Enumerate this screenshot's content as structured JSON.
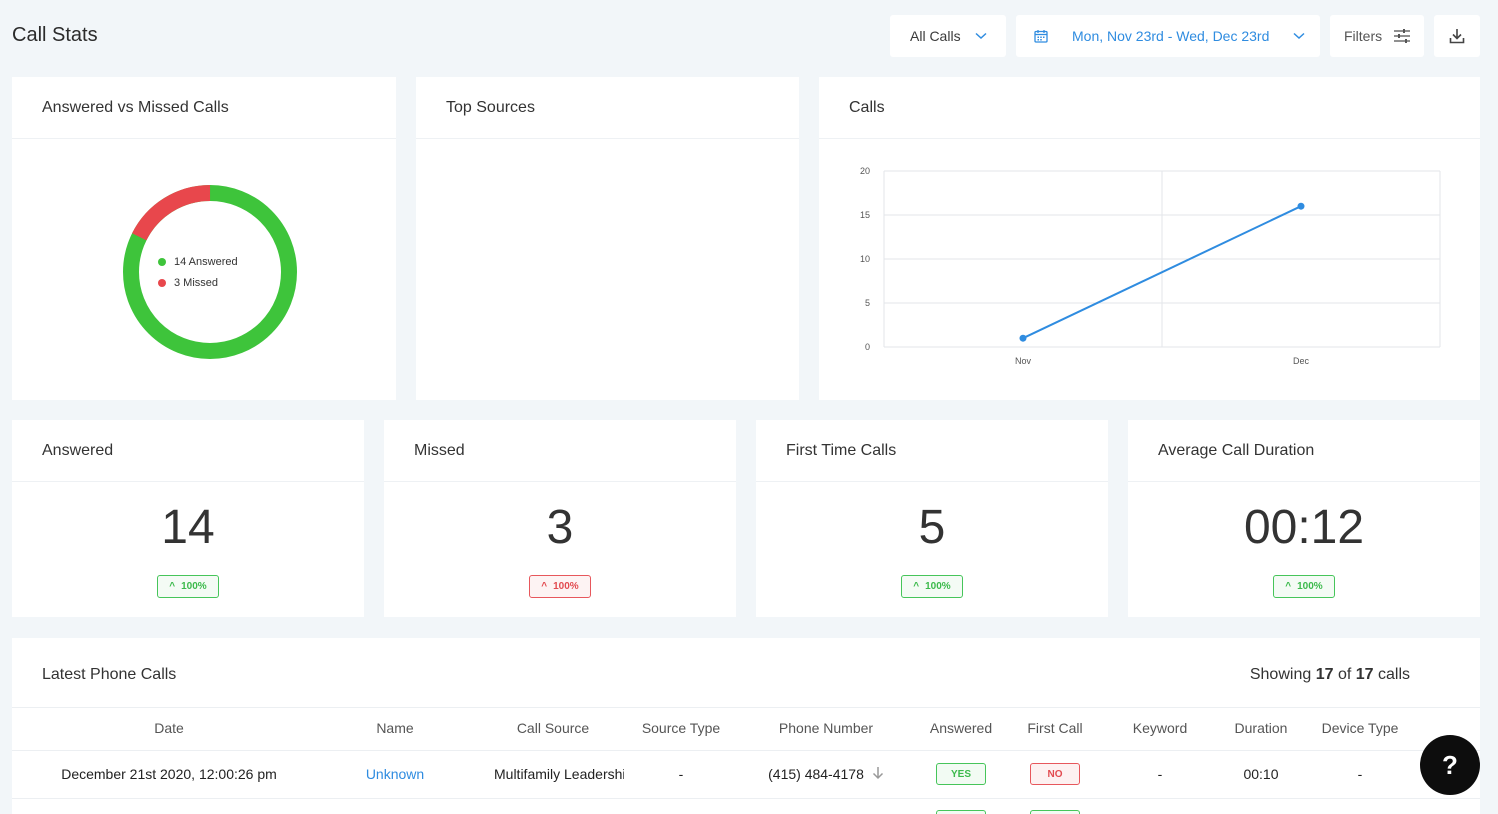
{
  "page": {
    "title": "Call Stats"
  },
  "header": {
    "call_filter": "All Calls",
    "date_range": "Mon, Nov 23rd - Wed, Dec 23rd",
    "filters_label": "Filters"
  },
  "answered_vs_missed": {
    "title": "Answered vs Missed Calls",
    "answered_label": "14 Answered",
    "missed_label": "3 Missed",
    "answered": 14,
    "missed": 3,
    "answered_color": "#3ec43b",
    "missed_color": "#e8474c"
  },
  "top_sources": {
    "title": "Top Sources"
  },
  "calls_chart": {
    "title": "Calls",
    "chart_data": {
      "type": "line",
      "categories": [
        "Nov",
        "Dec"
      ],
      "values": [
        1,
        16
      ],
      "ylim": [
        0,
        20
      ],
      "yticks": [
        "0",
        "5",
        "10",
        "15",
        "20"
      ],
      "grid": true,
      "color": "#2f8ce0"
    }
  },
  "stats": [
    {
      "label": "Answered",
      "value": "14",
      "change": "100%",
      "trend": "green"
    },
    {
      "label": "Missed",
      "value": "3",
      "change": "100%",
      "trend": "red"
    },
    {
      "label": "First Time Calls",
      "value": "5",
      "change": "100%",
      "trend": "green"
    },
    {
      "label": "Average Call Duration",
      "value": "00:12",
      "change": "100%",
      "trend": "green"
    }
  ],
  "latest_calls": {
    "title": "Latest Phone Calls",
    "showing_prefix": "Showing",
    "showing_count": "17",
    "showing_of": "of",
    "showing_total": "17",
    "showing_suffix": "calls",
    "columns": [
      "Date",
      "Name",
      "Call Source",
      "Source Type",
      "Phone Number",
      "Answered",
      "First Call",
      "Keyword",
      "Duration",
      "Device Type"
    ],
    "rows": [
      {
        "date": "December 21st 2020, 12:00:26 pm",
        "name": "Unknown",
        "call_source": "Multifamily Leadership",
        "source_type": "-",
        "phone": "(415) 484-4178",
        "answered": "YES",
        "first_call": "NO",
        "keyword": "-",
        "duration": "00:10",
        "device_type": "-"
      }
    ]
  },
  "help": {
    "label": "?"
  }
}
